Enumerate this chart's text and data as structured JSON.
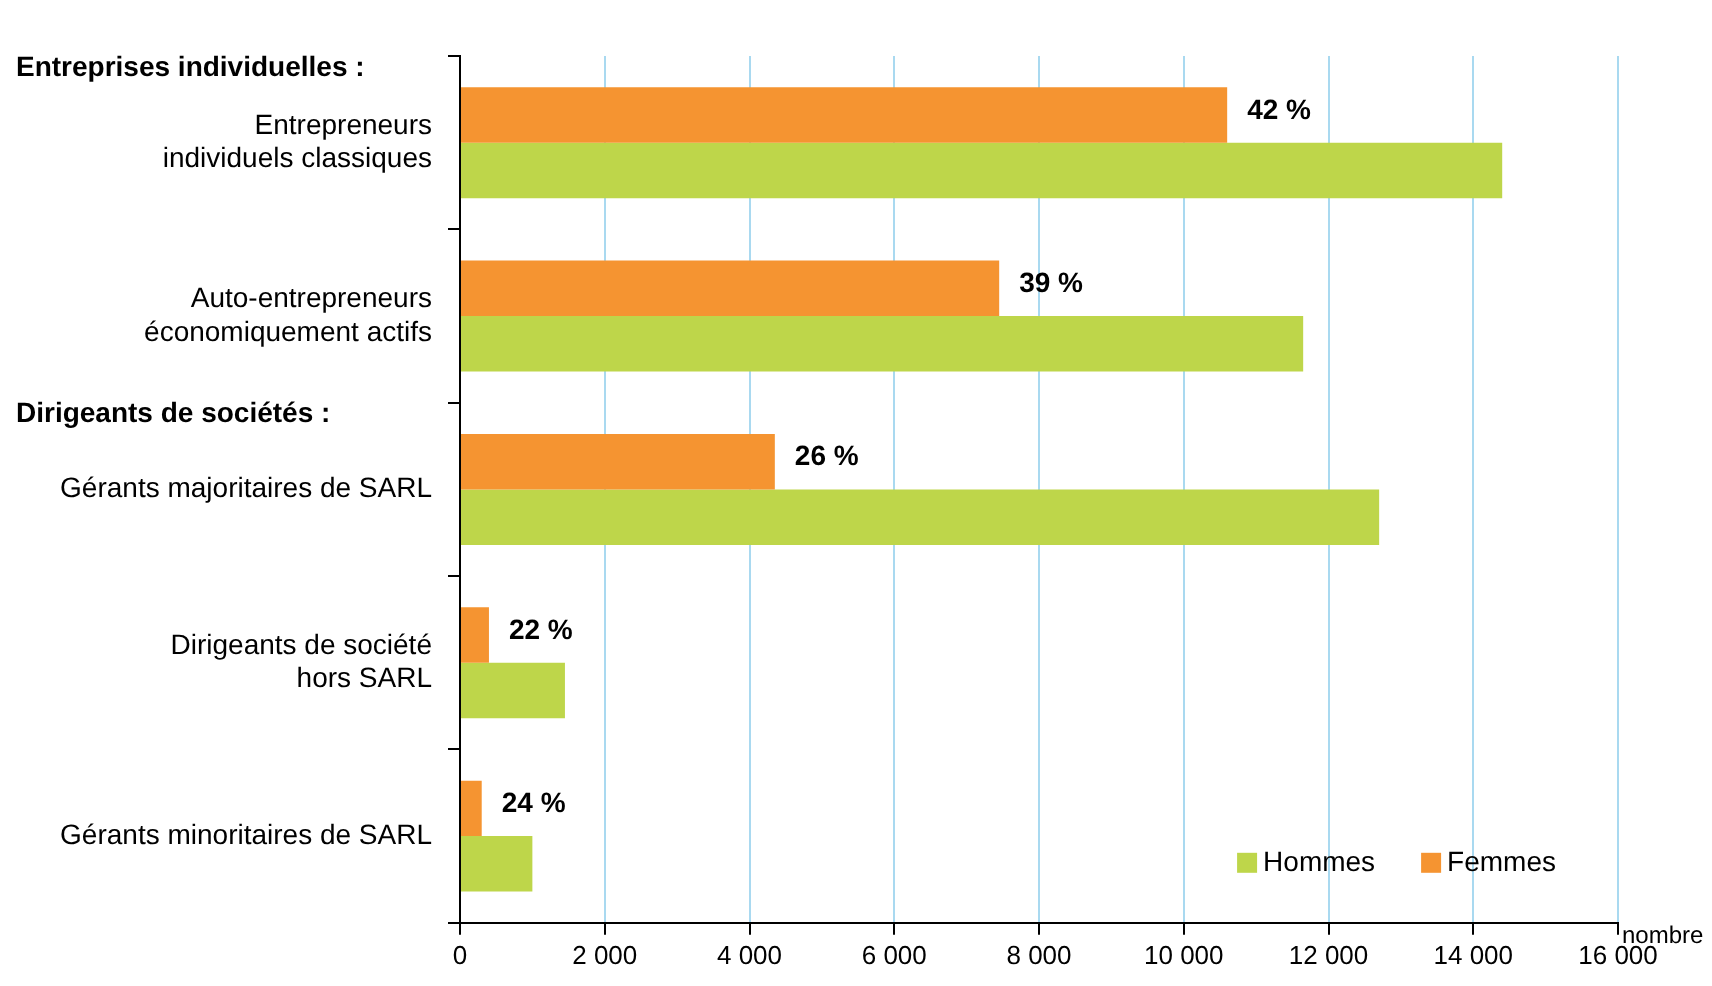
{
  "chart_data": {
    "type": "bar",
    "orientation": "horizontal",
    "categories": [
      "Entrepreneurs\nindividuels classiques",
      "Auto-entrepreneurs\néconomiquement actifs",
      "Gérants majoritaires de SARL",
      "Dirigeants de société\nhors SARL",
      "Gérants minoritaires de SARL"
    ],
    "series": [
      {
        "name": "Hommes",
        "color": "#bed64a",
        "values": [
          14400,
          11650,
          12700,
          1450,
          1000
        ]
      },
      {
        "name": "Femmes",
        "color": "#f59431",
        "values": [
          10600,
          7450,
          4350,
          400,
          300
        ]
      }
    ],
    "xlabel": "nombre",
    "xlim": [
      0,
      16000
    ],
    "xticks": [
      0,
      {
        "value": 2000,
        "label": "2 000"
      },
      {
        "value": 4000,
        "label": "4 000"
      },
      {
        "value": 6000,
        "label": "6 000"
      },
      {
        "value": 8000,
        "label": "8 000"
      },
      {
        "value": 10000,
        "label": "10 000"
      },
      {
        "value": 12000,
        "label": "12 000"
      },
      {
        "value": 14000,
        "label": "14 000"
      },
      {
        "value": 16000,
        "label": "16 000"
      }
    ],
    "annotations": [
      "Entreprises individuelles :",
      "Dirigeants de sociétés :",
      {
        "text": "42 %",
        "x": 10600,
        "y": "Entrepreneurs\nindividuels classiques"
      },
      {
        "text": "39 %",
        "x": 7450,
        "y": "Auto-entrepreneurs\néconomiquement actifs"
      },
      {
        "text": "26 %",
        "x": 4350,
        "y": "Gérants majoritaires de SARL"
      },
      {
        "text": "22 %",
        "x": 400,
        "y": "Dirigeants de société\nhors SARL"
      },
      {
        "text": "24 %",
        "x": 300,
        "y": "Gérants minoritaires de SARL"
      }
    ],
    "grid": "x",
    "legend": "bottom right"
  }
}
